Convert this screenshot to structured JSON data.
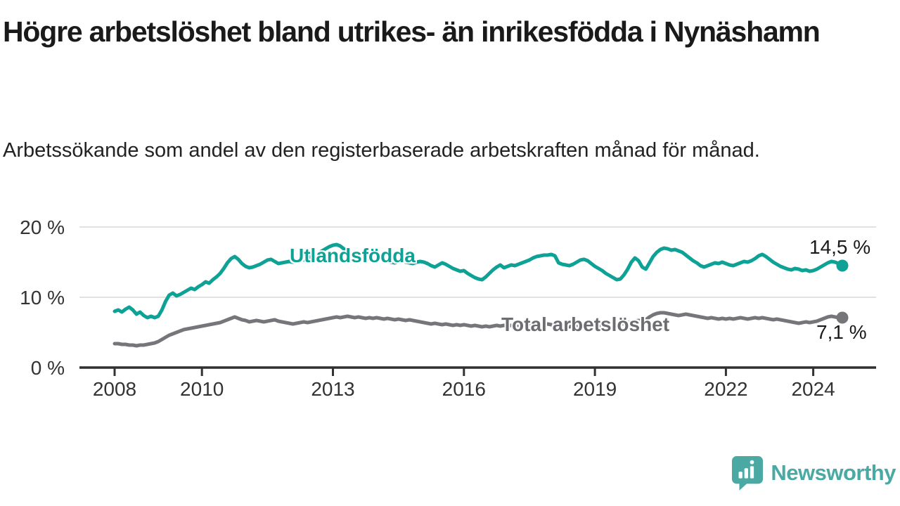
{
  "header": {
    "title": "Högre arbetslöshet bland utrikes- än inrikesfödda i Nynäshamn",
    "subtitle": "Arbetssökande som andel av den registerbaserade arbetskraften månad för månad."
  },
  "chart_data": {
    "type": "line",
    "title": "Högre arbetslöshet bland utrikes- än inrikesfödda i Nynäshamn",
    "subtitle": "Arbetssökande som andel av den registerbaserade arbetskraften månad för månad.",
    "x_start": "2008-01",
    "x_end": "2024-09",
    "frequency": "monthly",
    "ylim": [
      0,
      20
    ],
    "grid": "horizontal-only",
    "legend_position": "inline-labels",
    "yticks": [
      {
        "value": 0,
        "label": "0 %"
      },
      {
        "value": 10,
        "label": "10 %"
      },
      {
        "value": 20,
        "label": "20 %"
      }
    ],
    "xticks": [
      {
        "year": 2008,
        "label": "2008"
      },
      {
        "year": 2010,
        "label": "2010"
      },
      {
        "year": 2013,
        "label": "2013"
      },
      {
        "year": 2016,
        "label": "2016"
      },
      {
        "year": 2019,
        "label": "2019"
      },
      {
        "year": 2022,
        "label": "2022"
      },
      {
        "year": 2024,
        "label": "2024"
      }
    ],
    "series": [
      {
        "name": "utlandsfodda",
        "label": "Utlandsfödda",
        "color": "#0ea296",
        "end_label": "14,5 %",
        "end_value": 14.5,
        "values": [
          8.0,
          8.2,
          7.9,
          8.3,
          8.6,
          8.2,
          7.6,
          7.9,
          7.4,
          7.1,
          7.3,
          7.1,
          7.3,
          8.2,
          9.4,
          10.3,
          10.6,
          10.2,
          10.4,
          10.7,
          11.0,
          11.3,
          11.1,
          11.5,
          11.8,
          12.2,
          12.0,
          12.5,
          12.9,
          13.4,
          14.1,
          14.9,
          15.5,
          15.8,
          15.4,
          14.8,
          14.4,
          14.2,
          14.3,
          14.5,
          14.7,
          15.0,
          15.3,
          15.4,
          15.1,
          14.8,
          14.9,
          15.0,
          15.1,
          15.0,
          15.2,
          15.4,
          15.3,
          15.5,
          15.8,
          16.0,
          16.3,
          16.6,
          16.9,
          17.2,
          17.4,
          17.5,
          17.3,
          16.9,
          16.5,
          16.2,
          15.9,
          15.7,
          15.6,
          15.4,
          15.5,
          15.3,
          15.2,
          15.4,
          15.3,
          15.1,
          15.0,
          14.9,
          15.1,
          15.2,
          15.0,
          14.9,
          14.8,
          15.0,
          15.1,
          15.0,
          14.8,
          14.5,
          14.3,
          14.6,
          14.9,
          14.7,
          14.4,
          14.1,
          13.9,
          13.7,
          13.8,
          13.4,
          13.1,
          12.8,
          12.6,
          12.5,
          12.9,
          13.4,
          13.9,
          14.3,
          14.6,
          14.2,
          14.4,
          14.6,
          14.5,
          14.7,
          14.9,
          15.1,
          15.3,
          15.6,
          15.8,
          15.9,
          16.0,
          16.0,
          16.1,
          15.9,
          14.9,
          14.7,
          14.6,
          14.5,
          14.7,
          15.0,
          15.3,
          15.4,
          15.2,
          14.8,
          14.4,
          14.1,
          13.8,
          13.4,
          13.1,
          12.8,
          12.5,
          12.6,
          13.2,
          14.0,
          15.0,
          15.6,
          15.2,
          14.3,
          14.0,
          14.9,
          15.8,
          16.4,
          16.8,
          17.0,
          16.9,
          16.7,
          16.8,
          16.6,
          16.4,
          16.0,
          15.6,
          15.2,
          14.9,
          14.5,
          14.3,
          14.5,
          14.7,
          14.9,
          14.8,
          15.0,
          14.8,
          14.6,
          14.5,
          14.7,
          14.9,
          15.1,
          15.0,
          15.2,
          15.5,
          15.9,
          16.1,
          15.8,
          15.4,
          15.0,
          14.7,
          14.4,
          14.2,
          14.0,
          13.9,
          14.1,
          14.0,
          13.8,
          13.9,
          13.7,
          13.8,
          14.0,
          14.3,
          14.6,
          14.9,
          15.1,
          15.0,
          14.8,
          14.5
        ]
      },
      {
        "name": "total-arbetsloshet",
        "label": "Total arbetslöshet",
        "color": "#76767a",
        "end_label": "7,1 %",
        "end_value": 7.1,
        "values": [
          3.4,
          3.4,
          3.3,
          3.3,
          3.2,
          3.2,
          3.1,
          3.2,
          3.2,
          3.3,
          3.4,
          3.5,
          3.7,
          4.0,
          4.3,
          4.6,
          4.8,
          5.0,
          5.2,
          5.4,
          5.5,
          5.6,
          5.7,
          5.8,
          5.9,
          6.0,
          6.1,
          6.2,
          6.3,
          6.4,
          6.6,
          6.8,
          7.0,
          7.2,
          7.0,
          6.8,
          6.7,
          6.5,
          6.6,
          6.7,
          6.6,
          6.5,
          6.6,
          6.7,
          6.8,
          6.6,
          6.5,
          6.4,
          6.3,
          6.2,
          6.3,
          6.4,
          6.5,
          6.4,
          6.5,
          6.6,
          6.7,
          6.8,
          6.9,
          7.0,
          7.1,
          7.2,
          7.1,
          7.2,
          7.3,
          7.2,
          7.1,
          7.2,
          7.1,
          7.0,
          7.1,
          7.0,
          7.1,
          7.0,
          6.9,
          7.0,
          6.9,
          6.8,
          6.9,
          6.8,
          6.7,
          6.8,
          6.7,
          6.6,
          6.5,
          6.4,
          6.3,
          6.2,
          6.3,
          6.2,
          6.1,
          6.2,
          6.1,
          6.0,
          6.1,
          6.0,
          6.1,
          6.0,
          5.9,
          6.0,
          5.9,
          5.8,
          5.9,
          5.8,
          5.9,
          6.0,
          5.9,
          6.0,
          5.9,
          6.0,
          6.1,
          6.0,
          5.9,
          6.0,
          6.1,
          6.0,
          6.1,
          6.0,
          6.1,
          6.2,
          6.1,
          6.0,
          5.9,
          6.0,
          5.9,
          5.8,
          5.9,
          5.8,
          5.9,
          5.8,
          5.9,
          6.0,
          5.9,
          5.8,
          5.9,
          6.0,
          6.1,
          6.0,
          6.1,
          6.2,
          6.3,
          6.4,
          6.5,
          6.6,
          6.7,
          6.6,
          6.8,
          7.2,
          7.5,
          7.7,
          7.8,
          7.8,
          7.7,
          7.6,
          7.5,
          7.4,
          7.5,
          7.6,
          7.5,
          7.4,
          7.3,
          7.2,
          7.1,
          7.0,
          7.1,
          7.0,
          6.9,
          7.0,
          6.9,
          7.0,
          6.9,
          7.0,
          7.1,
          7.0,
          6.9,
          7.0,
          7.1,
          7.0,
          7.1,
          7.0,
          6.9,
          6.8,
          6.9,
          6.8,
          6.7,
          6.6,
          6.5,
          6.4,
          6.3,
          6.4,
          6.5,
          6.4,
          6.5,
          6.6,
          6.8,
          7.0,
          7.2,
          7.3,
          7.2,
          7.1,
          7.1
        ]
      }
    ]
  },
  "axis_style": {
    "tick_color": "#333333",
    "axis_color": "#2f2f2f",
    "grid_color": "#e1e1e1",
    "label_color": "#333333"
  },
  "footer": {
    "brand": "Newsworthy",
    "brand_color": "#4aa9a2"
  }
}
